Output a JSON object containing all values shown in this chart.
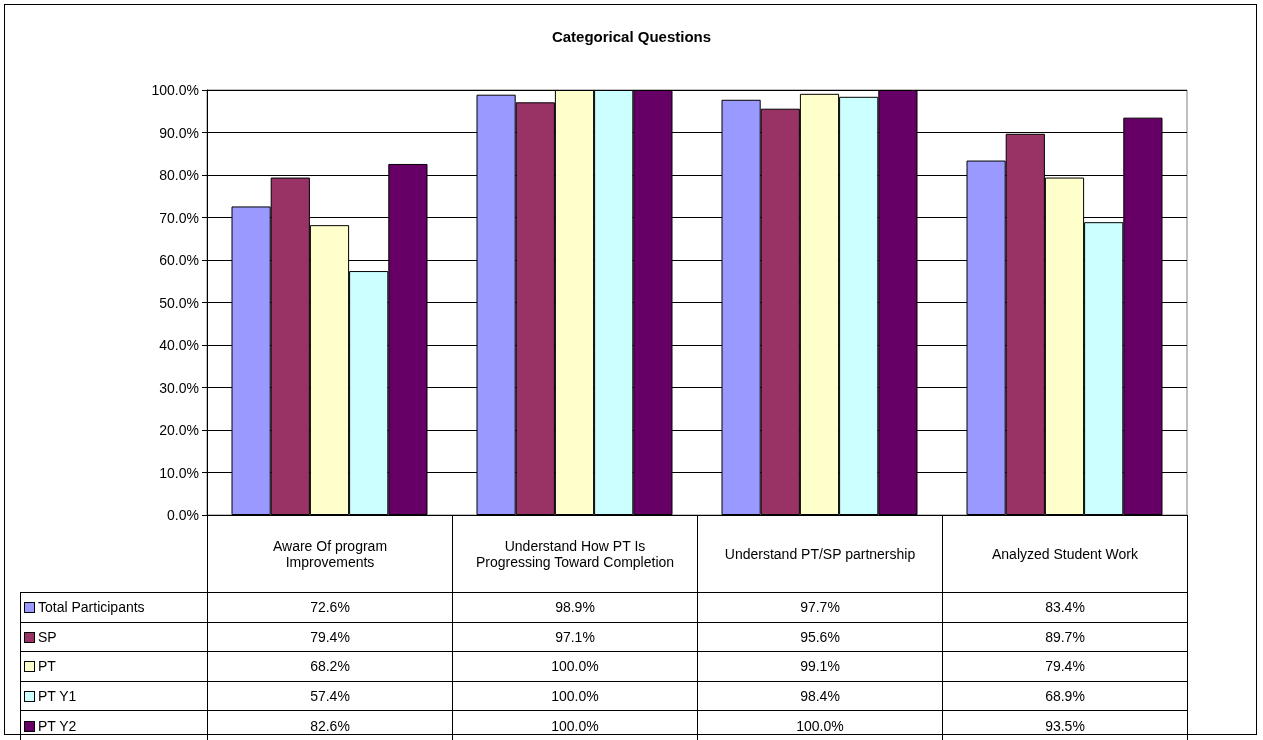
{
  "chart_data": {
    "type": "bar",
    "title": "Categorical Questions",
    "categories": [
      "Aware Of program Improvements",
      "Understand How PT Is Progressing Toward Completion",
      "Understand PT/SP partnership",
      "Analyzed Student Work"
    ],
    "series": [
      {
        "name": "Total Participants",
        "color": "#9999ff",
        "values": [
          72.6,
          98.9,
          97.7,
          83.4
        ],
        "value_labels": [
          "72.6%",
          "98.9%",
          "97.7%",
          "83.4%"
        ]
      },
      {
        "name": "SP",
        "color": "#993366",
        "values": [
          79.4,
          97.1,
          95.6,
          89.7
        ],
        "value_labels": [
          "79.4%",
          "97.1%",
          "95.6%",
          "89.7%"
        ]
      },
      {
        "name": "PT",
        "color": "#ffffcc",
        "values": [
          68.2,
          100.0,
          99.1,
          79.4
        ],
        "value_labels": [
          "68.2%",
          "100.0%",
          "99.1%",
          "79.4%"
        ]
      },
      {
        "name": "PT Y1",
        "color": "#ccffff",
        "values": [
          57.4,
          100.0,
          98.4,
          68.9
        ],
        "value_labels": [
          "57.4%",
          "100.0%",
          "98.4%",
          "68.9%"
        ]
      },
      {
        "name": "PT Y2",
        "color": "#660066",
        "values": [
          82.6,
          100.0,
          100.0,
          93.5
        ],
        "value_labels": [
          "82.6%",
          "100.0%",
          "100.0%",
          "93.5%"
        ]
      }
    ],
    "ylim": [
      0,
      100
    ],
    "yticks": [
      {
        "value": 0,
        "label": "0.0%"
      },
      {
        "value": 10,
        "label": "10.0%"
      },
      {
        "value": 20,
        "label": "20.0%"
      },
      {
        "value": 30,
        "label": "30.0%"
      },
      {
        "value": 40,
        "label": "40.0%"
      },
      {
        "value": 50,
        "label": "50.0%"
      },
      {
        "value": 60,
        "label": "60.0%"
      },
      {
        "value": 70,
        "label": "70.0%"
      },
      {
        "value": 80,
        "label": "80.0%"
      },
      {
        "value": 90,
        "label": "90.0%"
      },
      {
        "value": 100,
        "label": "100.0%"
      }
    ],
    "grid": "y",
    "legend": "bottom left"
  }
}
